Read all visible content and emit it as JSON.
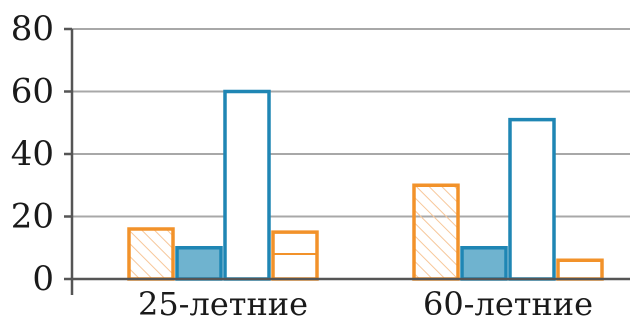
{
  "chart_data": {
    "type": "bar",
    "categories": [
      "25-летние",
      "60-летние"
    ],
    "series": [
      {
        "values": [
          16,
          30
        ],
        "style": "orange-hatched"
      },
      {
        "values": [
          10,
          10
        ],
        "style": "blue-filled"
      },
      {
        "values": [
          60,
          51
        ],
        "style": "blue-outline"
      },
      {
        "values": [
          15,
          6
        ],
        "style": "orange-horizontal-lines"
      }
    ],
    "ylim": [
      0,
      80
    ],
    "yticks": [
      0,
      20,
      40,
      60,
      80
    ],
    "grid": true,
    "legend": "none"
  },
  "colors": {
    "orange": "#f2922a",
    "orange_hatch": "#f7c79a",
    "blue": "#1f86b4",
    "blue_fill": "#6fb3cf",
    "grid": "#a8a8a8",
    "axis": "#555555"
  }
}
